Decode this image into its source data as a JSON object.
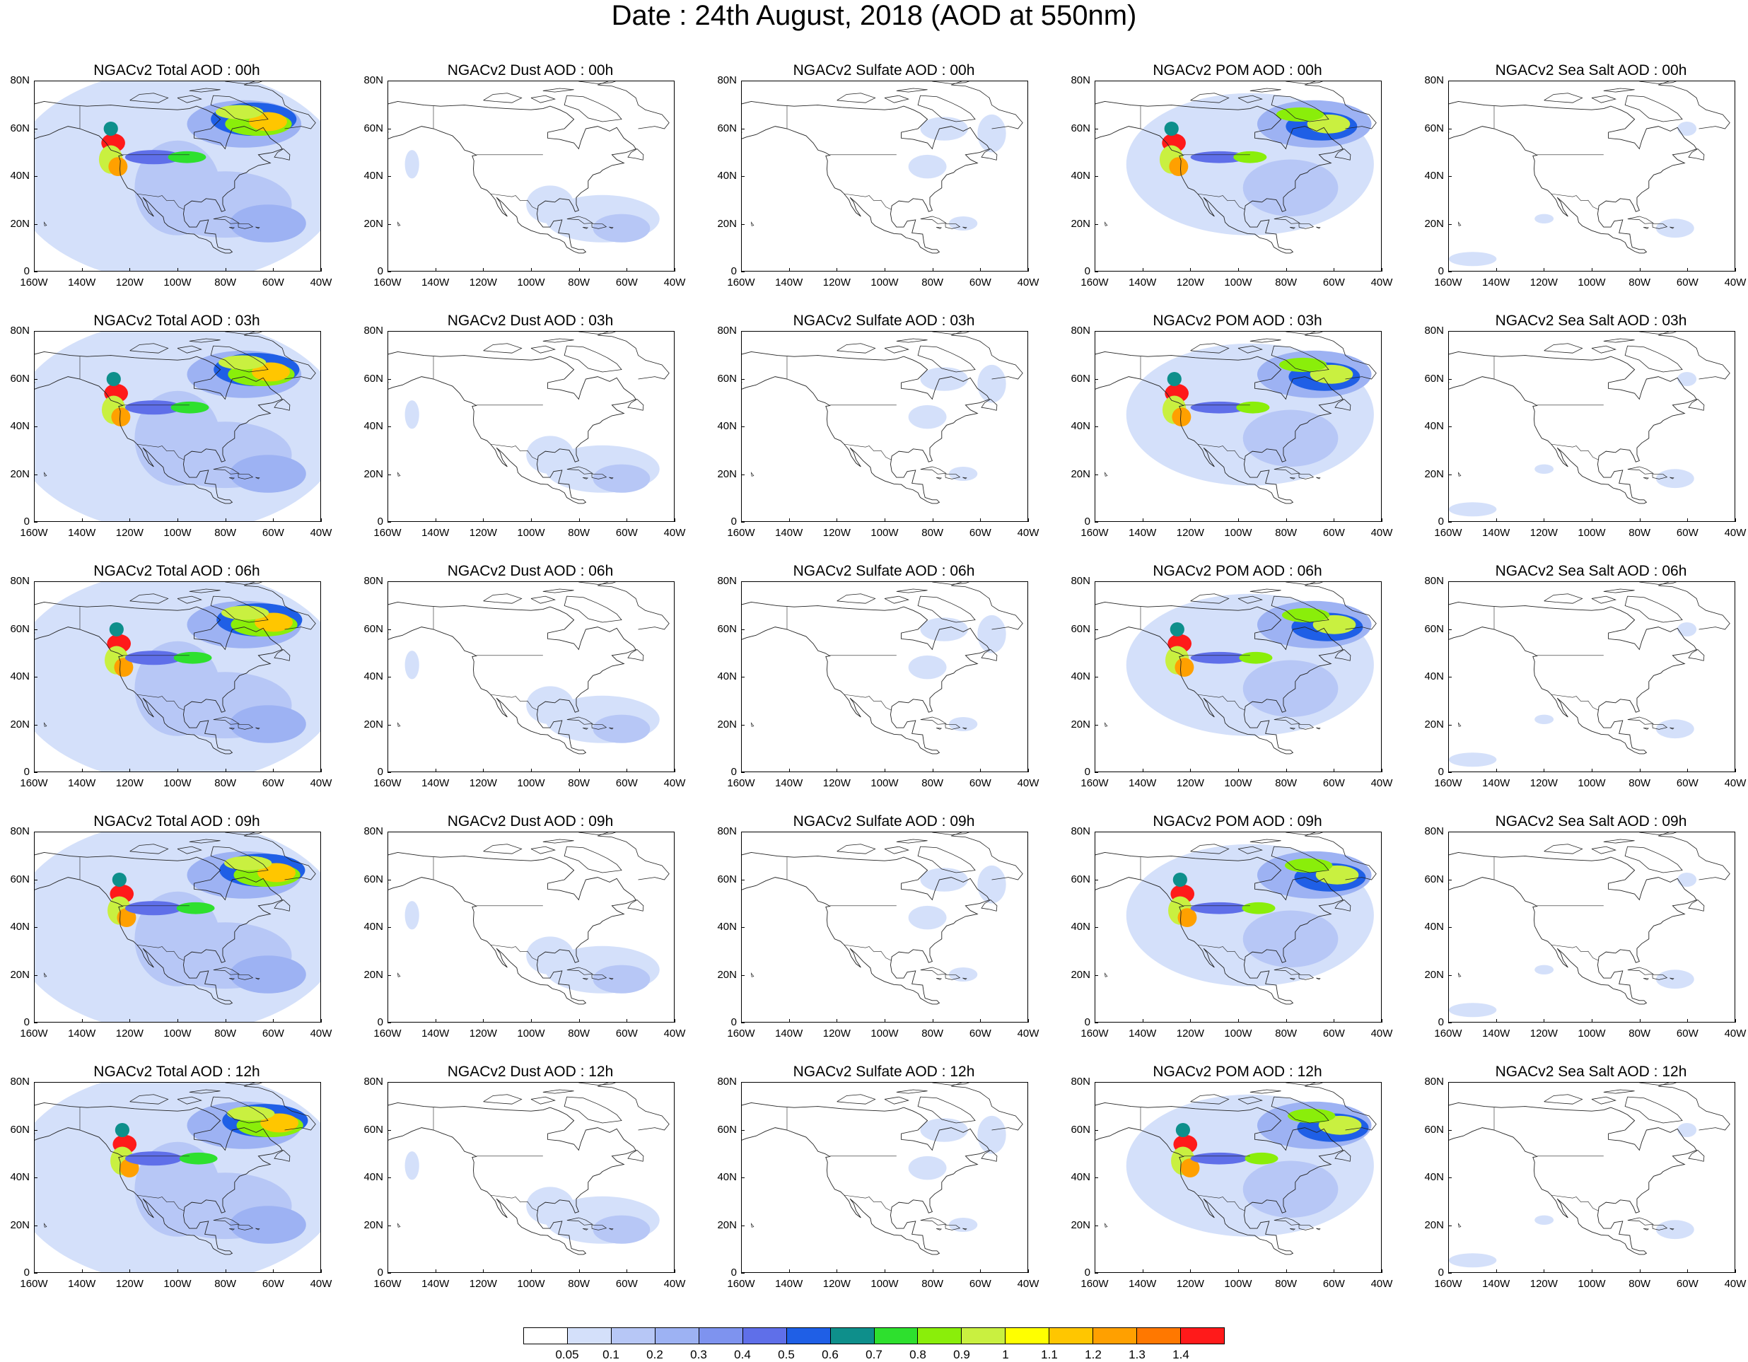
{
  "title": "Date : 24th August, 2018 (AOD at 550nm)",
  "rows": [
    [
      "NGACv2 Total AOD : 00h",
      "NGACv2 Dust AOD : 00h",
      "NGACv2 Sulfate AOD : 00h",
      "NGACv2 POM AOD : 00h",
      "NGACv2 Sea Salt AOD : 00h"
    ],
    [
      "NGACv2 Total AOD : 03h",
      "NGACv2 Dust AOD : 03h",
      "NGACv2 Sulfate AOD : 03h",
      "NGACv2 POM AOD : 03h",
      "NGACv2 Sea Salt AOD : 03h"
    ],
    [
      "NGACv2 Total AOD : 06h",
      "NGACv2 Dust AOD : 06h",
      "NGACv2 Sulfate AOD : 06h",
      "NGACv2 POM AOD : 06h",
      "NGACv2 Sea Salt AOD : 06h"
    ],
    [
      "NGACv2 Total AOD : 09h",
      "NGACv2 Dust AOD : 09h",
      "NGACv2 Sulfate AOD : 09h",
      "NGACv2 POM AOD : 09h",
      "NGACv2 Sea Salt  AOD : 09h"
    ],
    [
      "NGACv2 Total AOD  : 12h",
      "NGACv2 Dust AOD : 12h",
      "NGACv2 Sulfate AOD : 12h",
      "NGACv2 POM  AOD : 12h",
      "NGACv2 Sea Salt  AOD : 12h"
    ]
  ],
  "columns": [
    {
      "species": "total",
      "intensity": 1.0
    },
    {
      "species": "dust",
      "intensity": 0.35
    },
    {
      "species": "sulfate",
      "intensity": 0.25
    },
    {
      "species": "pom",
      "intensity": 0.9
    },
    {
      "species": "seasalt",
      "intensity": 0.2
    }
  ],
  "lat_labels": [
    "80N",
    "60N",
    "40N",
    "20N",
    "0"
  ],
  "lon_labels": [
    "160W",
    "140W",
    "120W",
    "100W",
    "80W",
    "60W",
    "40W"
  ],
  "colorbar": {
    "labels": [
      "0.05",
      "0.1",
      "0.2",
      "0.3",
      "0.4",
      "0.5",
      "0.6",
      "0.7",
      "0.8",
      "0.9",
      "1",
      "1.1",
      "1.2",
      "1.3",
      "1.4"
    ],
    "colors": [
      "#ffffff",
      "#d4e0fa",
      "#b7c7f6",
      "#9db2f3",
      "#7e93ef",
      "#5f6fe9",
      "#1f5fe6",
      "#0e8f8b",
      "#2ee02e",
      "#8aee0a",
      "#c9f040",
      "#ffff00",
      "#ffc600",
      "#ffa000",
      "#ff7800",
      "#ff1a1a"
    ]
  }
}
